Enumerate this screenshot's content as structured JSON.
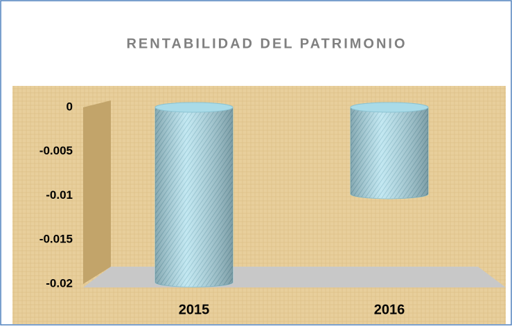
{
  "chart_data": {
    "type": "bar",
    "title": "RENTABILIDAD  DEL PATRIMONIO",
    "categories": [
      "2015",
      "2016"
    ],
    "values": [
      -0.0198,
      -0.0098
    ],
    "color": "#a9dbe8",
    "ylim": [
      -0.02,
      0
    ],
    "yticks": [
      0,
      -0.005,
      -0.01,
      -0.015,
      -0.02
    ]
  }
}
